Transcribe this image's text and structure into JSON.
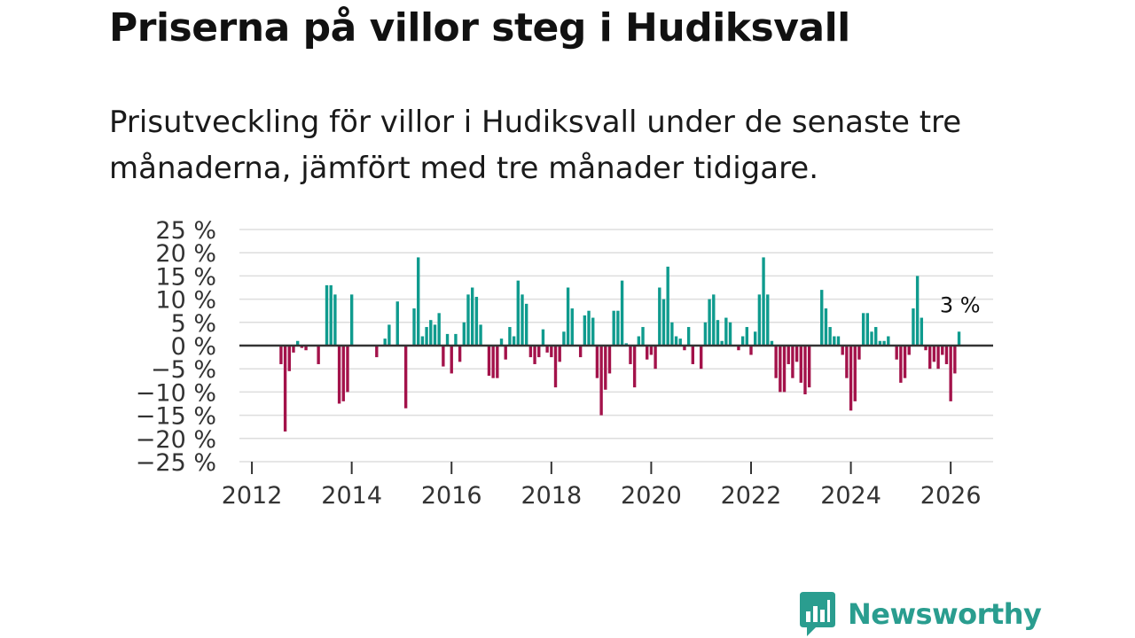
{
  "title": "Priserna på villor steg i Hudiksvall",
  "subtitle": "Prisutveckling för villor i Hudiksvall under de senaste tre månaderna, jämfört med tre månader tidigare.",
  "brand": "Newsworthy",
  "colors": {
    "positive": "#0f9b8e",
    "negative": "#a3124a",
    "gridline": "#dddddd",
    "zeroline": "#333333",
    "brand": "#2a9d8f"
  },
  "chart_data": {
    "type": "bar",
    "title": "Priserna på villor steg i Hudiksvall",
    "xlabel": "",
    "ylabel": "",
    "ylim": [
      -25,
      25
    ],
    "yticks": [
      25,
      20,
      15,
      10,
      5,
      0,
      -5,
      -10,
      -15,
      -20,
      -25
    ],
    "ytick_labels": [
      "25 %",
      "20 %",
      "15 %",
      "10 %",
      "5 %",
      "0 %",
      "−5 %",
      "−10 %",
      "−15 %",
      "−20 %",
      "−25 %"
    ],
    "xlim": [
      2011.75,
      2026.85
    ],
    "xticks": [
      2012,
      2014,
      2016,
      2018,
      2020,
      2022,
      2024,
      2026
    ],
    "xtick_labels": [
      "2012",
      "2014",
      "2016",
      "2018",
      "2020",
      "2022",
      "2024",
      "2026"
    ],
    "start_year": 2012,
    "start_month": 8,
    "step_months": 1,
    "values": [
      -4,
      -18.5,
      -5.5,
      -1.5,
      1,
      -0.5,
      -1,
      0,
      0,
      -4,
      0,
      13,
      13,
      11,
      -12.5,
      -12,
      -10,
      11,
      0,
      0,
      0,
      0,
      0,
      -2.5,
      0,
      1.5,
      4.5,
      0,
      9.5,
      0,
      -13.5,
      0,
      8,
      19,
      2,
      4,
      5.5,
      4.5,
      7,
      -4.5,
      2.5,
      -6,
      2.5,
      -3.5,
      5,
      11,
      12.5,
      10.5,
      4.5,
      0,
      -6.5,
      -7,
      -7,
      1.5,
      -3,
      4,
      2,
      14,
      11,
      9,
      -2.5,
      -4,
      -2.5,
      3.5,
      -1.5,
      -2.5,
      -9,
      -3.5,
      3,
      12.5,
      8,
      0,
      -2.5,
      6.5,
      7.5,
      6,
      -7,
      -15,
      -9.5,
      -6,
      7.5,
      7.5,
      14,
      0.5,
      -4,
      -9,
      2,
      4,
      -3,
      -2,
      -5,
      12.5,
      10,
      17,
      5,
      2,
      1.5,
      -1,
      4,
      -4,
      0,
      -5,
      5,
      10,
      11,
      5.5,
      1,
      6,
      5,
      0,
      -1,
      2,
      4,
      -2,
      3,
      11,
      19,
      11,
      1,
      -7,
      -10,
      -10,
      -4,
      -7,
      -3.5,
      -8,
      -10.5,
      -9,
      0,
      0,
      12,
      8,
      4,
      2,
      2,
      -2,
      -7,
      -14,
      -12,
      -3,
      7,
      7,
      3,
      4,
      1,
      1,
      2,
      0,
      -3,
      -8,
      -7,
      -2,
      8,
      15,
      6,
      -1,
      -5,
      -3.5,
      -5,
      -2,
      -4,
      -12,
      -6,
      3
    ],
    "annotation": "3 %"
  }
}
